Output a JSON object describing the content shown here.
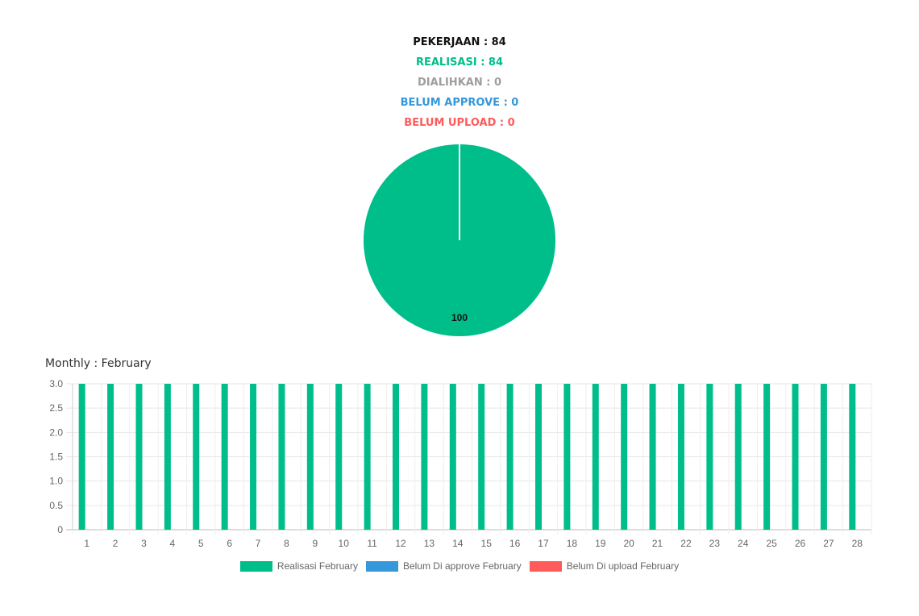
{
  "summary": {
    "pekerjaan": "PEKERJAAN : 84",
    "realisasi": "REALISASI : 84",
    "dialihkan": "DIALIHKAN : 0",
    "belum_approve": "BELUM APPROVE : 0",
    "belum_upload": "BELUM UPLOAD : 0"
  },
  "colors": {
    "black": "#111111",
    "green": "#00BE8A",
    "gray": "#9E9E9E",
    "blue": "#3498DB",
    "red": "#FF5B5B"
  },
  "monthly_title": "Monthly : February",
  "chart_data": [
    {
      "type": "pie",
      "values": [
        100
      ],
      "labels": [
        "100"
      ],
      "colors": [
        "#00BE8A"
      ]
    },
    {
      "type": "bar",
      "categories": [
        "1",
        "2",
        "3",
        "4",
        "5",
        "6",
        "7",
        "8",
        "9",
        "10",
        "11",
        "12",
        "13",
        "14",
        "15",
        "16",
        "17",
        "18",
        "19",
        "20",
        "21",
        "22",
        "23",
        "24",
        "25",
        "26",
        "27",
        "28"
      ],
      "series": [
        {
          "name": "Realisasi February",
          "color": "#00BE8A",
          "values": [
            3,
            3,
            3,
            3,
            3,
            3,
            3,
            3,
            3,
            3,
            3,
            3,
            3,
            3,
            3,
            3,
            3,
            3,
            3,
            3,
            3,
            3,
            3,
            3,
            3,
            3,
            3,
            3
          ]
        },
        {
          "name": "Belum Di approve February",
          "color": "#3498DB",
          "values": [
            0,
            0,
            0,
            0,
            0,
            0,
            0,
            0,
            0,
            0,
            0,
            0,
            0,
            0,
            0,
            0,
            0,
            0,
            0,
            0,
            0,
            0,
            0,
            0,
            0,
            0,
            0,
            0
          ]
        },
        {
          "name": "Belum Di upload February",
          "color": "#FF5B5B",
          "values": [
            0,
            0,
            0,
            0,
            0,
            0,
            0,
            0,
            0,
            0,
            0,
            0,
            0,
            0,
            0,
            0,
            0,
            0,
            0,
            0,
            0,
            0,
            0,
            0,
            0,
            0,
            0,
            0
          ]
        }
      ],
      "yticks": [
        "0",
        "0.5",
        "1.0",
        "1.5",
        "2.0",
        "2.5",
        "3.0"
      ],
      "ylim": [
        0,
        3
      ],
      "grid": true,
      "legend": "bottom"
    }
  ]
}
